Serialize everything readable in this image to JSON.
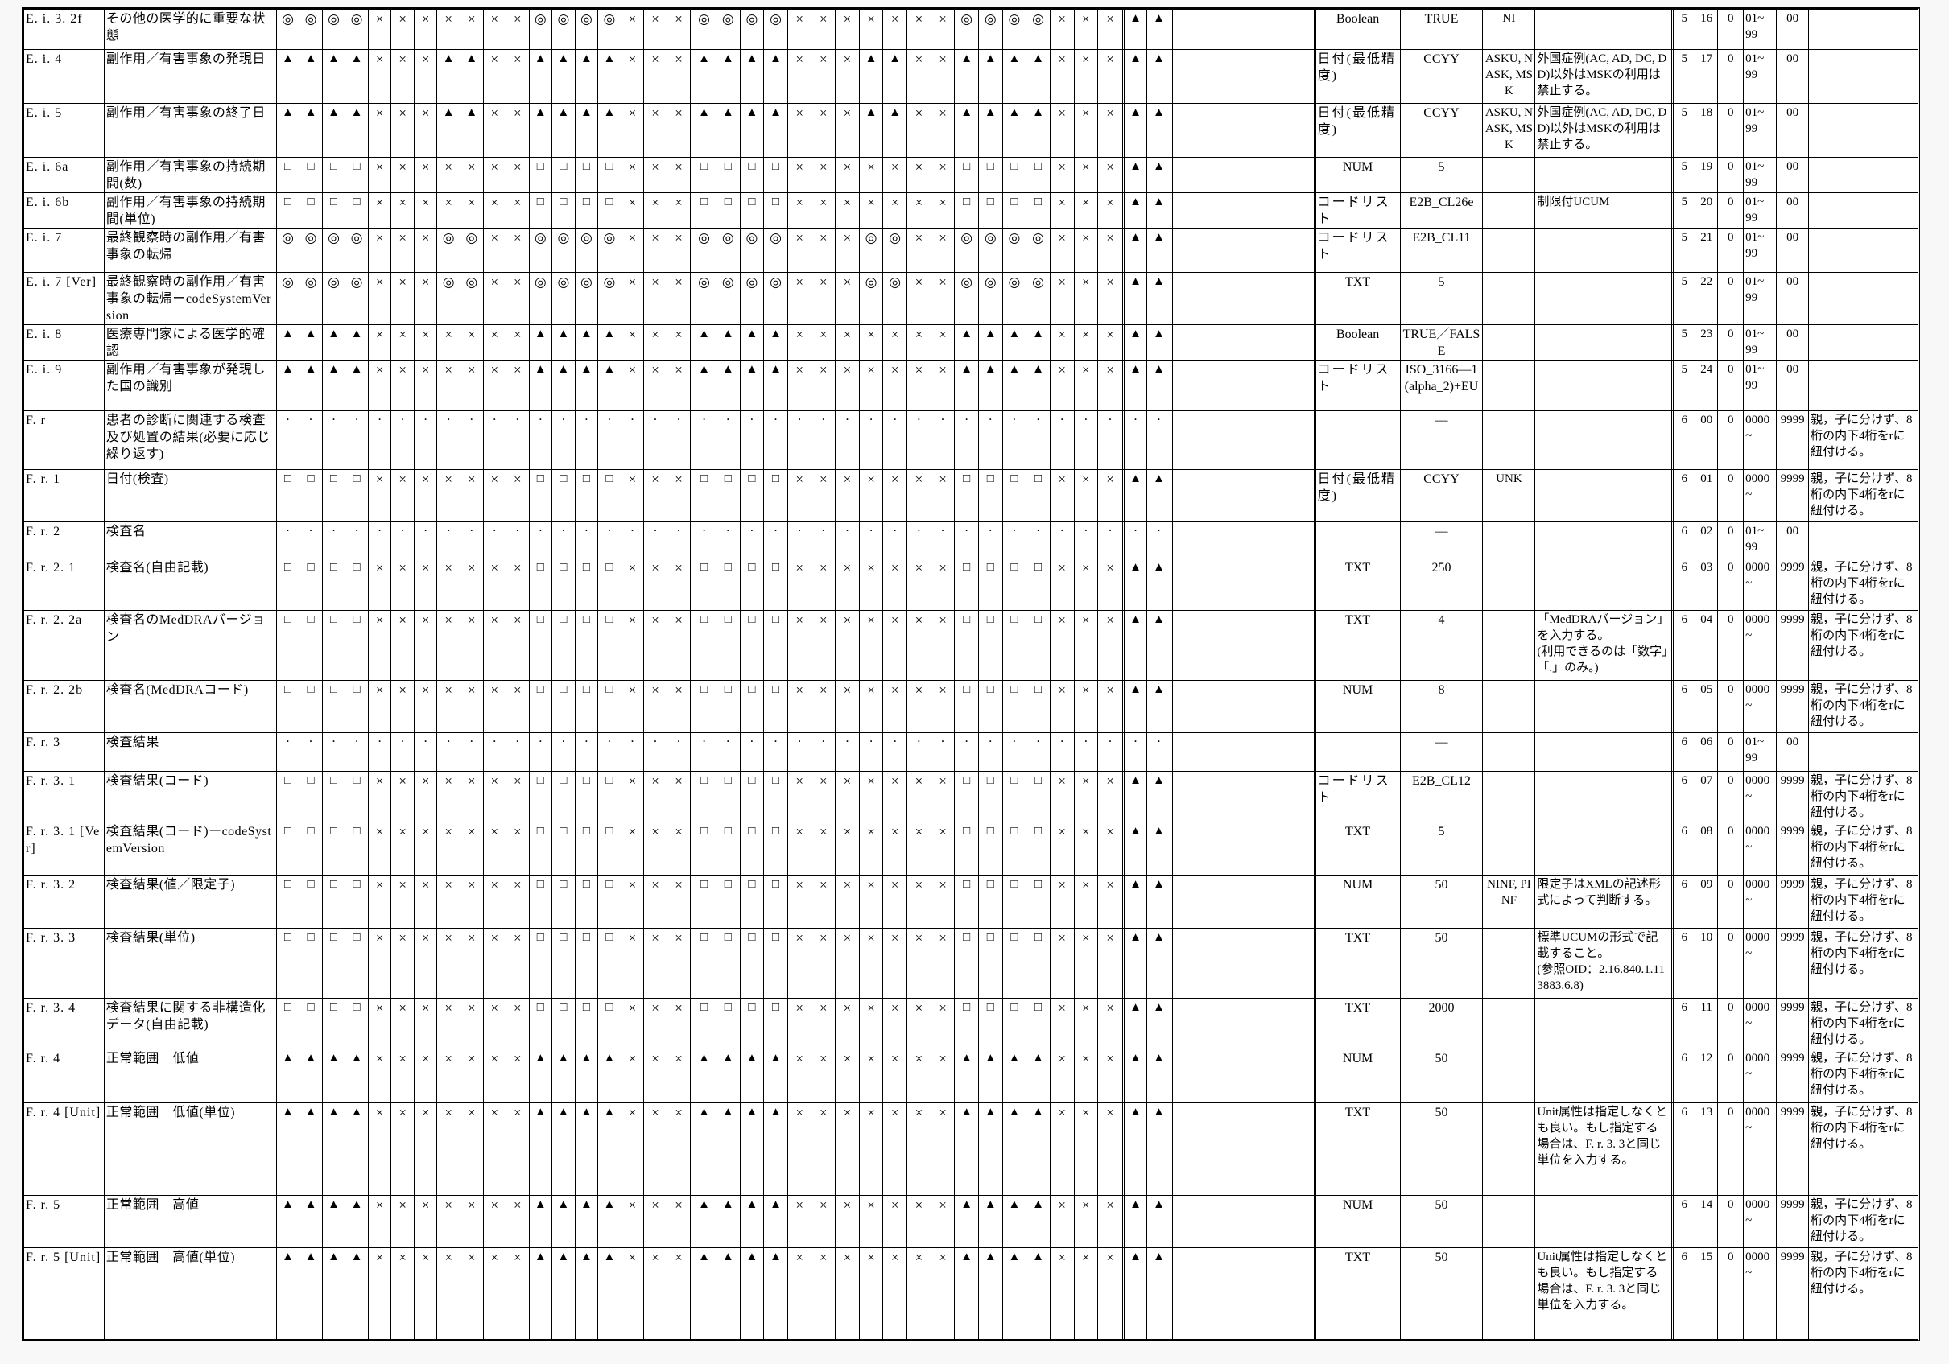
{
  "symbols_legend": {
    "double-circle-icon": "◎",
    "black-triangle-icon": "▲",
    "cross-icon": "×",
    "white-square-icon": "□",
    "dot-icon": "·"
  },
  "table": {
    "rows": [
      {
        "id": "E. i. 3. 2f",
        "desc": "その他の医学的に重要な状態",
        "half": "◎◎◎◎×××××××◎◎◎◎×××",
        "tail": "▲▲",
        "dtype": "Boolean",
        "value": "TRUE",
        "nullflavor": "NI",
        "note": "",
        "g1": "5",
        "g2": "16",
        "g3": "0",
        "g4": "01~\n99",
        "g5": "00",
        "endnote": ""
      },
      {
        "id": "E. i. 4",
        "desc": "副作用／有害事象の発現日",
        "half": "▲▲▲▲×××▲▲××▲▲▲▲×××",
        "tail": "▲▲",
        "dtype": "日付(最低精度)",
        "value": "CCYY",
        "nullflavor": "ASKU, NASK, MSK",
        "note": "外国症例(AC, AD, DC, DD)以外はMSKの利用は禁止する。",
        "g1": "5",
        "g2": "17",
        "g3": "0",
        "g4": "01~\n99",
        "g5": "00",
        "endnote": ""
      },
      {
        "id": "E. i. 5",
        "desc": "副作用／有害事象の終了日",
        "half": "▲▲▲▲×××▲▲××▲▲▲▲×××",
        "tail": "▲▲",
        "dtype": "日付(最低精度)",
        "value": "CCYY",
        "nullflavor": "ASKU, NASK, MSK",
        "note": "外国症例(AC, AD, DC, DD)以外はMSKの利用は禁止する。",
        "g1": "5",
        "g2": "18",
        "g3": "0",
        "g4": "01~\n99",
        "g5": "00",
        "endnote": ""
      },
      {
        "id": "E. i. 6a",
        "desc": "副作用／有害事象の持続期間(数)",
        "half": "□□□□×××××××□□□□×××",
        "tail": "▲▲",
        "dtype": "NUM",
        "value": "5",
        "nullflavor": "",
        "note": "",
        "g1": "5",
        "g2": "19",
        "g3": "0",
        "g4": "01~\n99",
        "g5": "00",
        "endnote": ""
      },
      {
        "id": "E. i. 6b",
        "desc": "副作用／有害事象の持続期間(単位)",
        "half": "□□□□×××××××□□□□×××",
        "tail": "▲▲",
        "dtype": "コードリスト",
        "value": "E2B_CL26e",
        "nullflavor": "",
        "note": "制限付UCUM",
        "g1": "5",
        "g2": "20",
        "g3": "0",
        "g4": "01~\n99",
        "g5": "00",
        "endnote": ""
      },
      {
        "id": "E. i. 7",
        "desc": "最終観察時の副作用／有害事象の転帰",
        "half": "◎◎◎◎×××◎◎××◎◎◎◎×××",
        "tail": "▲▲",
        "dtype": "コードリスト",
        "value": "E2B_CL11",
        "nullflavor": "",
        "note": "",
        "g1": "5",
        "g2": "21",
        "g3": "0",
        "g4": "01~\n99",
        "g5": "00",
        "endnote": ""
      },
      {
        "id": "E. i. 7 [Ver]",
        "desc": "最終観察時の副作用／有害事象の転帰ーcodeSystemVersion",
        "half": "◎◎◎◎×××◎◎××◎◎◎◎×××",
        "tail": "▲▲",
        "dtype": "TXT",
        "value": "5",
        "nullflavor": "",
        "note": "",
        "g1": "5",
        "g2": "22",
        "g3": "0",
        "g4": "01~\n99",
        "g5": "00",
        "endnote": ""
      },
      {
        "id": "E. i. 8",
        "desc": "医療専門家による医学的確認",
        "half": "▲▲▲▲×××××××▲▲▲▲×××",
        "tail": "▲▲",
        "dtype": "Boolean",
        "value": "TRUE／FALSE",
        "nullflavor": "",
        "note": "",
        "g1": "5",
        "g2": "23",
        "g3": "0",
        "g4": "01~\n99",
        "g5": "00",
        "endnote": ""
      },
      {
        "id": "E. i. 9",
        "desc": "副作用／有害事象が発現した国の識別",
        "half": "▲▲▲▲×××××××▲▲▲▲×××",
        "tail": "▲▲",
        "dtype": "コードリスト",
        "value": "ISO_3166—1(alpha_2)+EU",
        "nullflavor": "",
        "note": "",
        "g1": "5",
        "g2": "24",
        "g3": "0",
        "g4": "01~\n99",
        "g5": "00",
        "endnote": ""
      },
      {
        "id": "F. r",
        "desc": "患者の診断に関連する検査及び処置の結果(必要に応じ繰り返す)",
        "half": "··················",
        "tail": "··",
        "dtype": "",
        "value": "―",
        "nullflavor": "",
        "note": "",
        "g1": "6",
        "g2": "00",
        "g3": "0",
        "g4": "0000\n~",
        "g5": "9999",
        "endnote": "親，子に分けず、8桁の内下4桁をrに紐付ける。"
      },
      {
        "id": "F. r. 1",
        "desc": "日付(検査)",
        "half": "□□□□×××××××□□□□×××",
        "tail": "▲▲",
        "dtype": "日付(最低精度)",
        "value": "CCYY",
        "nullflavor": "UNK",
        "note": "",
        "g1": "6",
        "g2": "01",
        "g3": "0",
        "g4": "0000\n~",
        "g5": "9999",
        "endnote": "親，子に分けず、8桁の内下4桁をrに紐付ける。"
      },
      {
        "id": "F. r. 2",
        "desc": "検査名",
        "half": "··················",
        "tail": "··",
        "dtype": "",
        "value": "―",
        "nullflavor": "",
        "note": "",
        "g1": "6",
        "g2": "02",
        "g3": "0",
        "g4": "01~\n99",
        "g5": "00",
        "endnote": ""
      },
      {
        "id": "F. r. 2. 1",
        "desc": "検査名(自由記載)",
        "half": "□□□□×××××××□□□□×××",
        "tail": "▲▲",
        "dtype": "TXT",
        "value": "250",
        "nullflavor": "",
        "note": "",
        "g1": "6",
        "g2": "03",
        "g3": "0",
        "g4": "0000\n~",
        "g5": "9999",
        "endnote": "親，子に分けず、8桁の内下4桁をrに紐付ける。"
      },
      {
        "id": "F. r. 2. 2a",
        "desc": "検査名のMedDRAバージョン",
        "half": "□□□□×××××××□□□□×××",
        "tail": "▲▲",
        "dtype": "TXT",
        "value": "4",
        "nullflavor": "",
        "note": "「MedDRAバージョン」を入力する。\n(利用できるのは「数字」「.」のみ。)",
        "g1": "6",
        "g2": "04",
        "g3": "0",
        "g4": "0000\n~",
        "g5": "9999",
        "endnote": "親，子に分けず、8桁の内下4桁をrに紐付ける。"
      },
      {
        "id": "F. r. 2. 2b",
        "desc": "検査名(MedDRAコード)",
        "half": "□□□□×××××××□□□□×××",
        "tail": "▲▲",
        "dtype": "NUM",
        "value": "8",
        "nullflavor": "",
        "note": "",
        "g1": "6",
        "g2": "05",
        "g3": "0",
        "g4": "0000\n~",
        "g5": "9999",
        "endnote": "親，子に分けず、8桁の内下4桁をrに紐付ける。"
      },
      {
        "id": "F. r. 3",
        "desc": "検査結果",
        "half": "··················",
        "tail": "··",
        "dtype": "",
        "value": "―",
        "nullflavor": "",
        "note": "",
        "g1": "6",
        "g2": "06",
        "g3": "0",
        "g4": "01~\n99",
        "g5": "00",
        "endnote": ""
      },
      {
        "id": "F. r. 3. 1",
        "desc": "検査結果(コード)",
        "half": "□□□□×××××××□□□□×××",
        "tail": "▲▲",
        "dtype": "コードリスト",
        "value": "E2B_CL12",
        "nullflavor": "",
        "note": "",
        "g1": "6",
        "g2": "07",
        "g3": "0",
        "g4": "0000\n~",
        "g5": "9999",
        "endnote": "親，子に分けず、8桁の内下4桁をrに紐付ける。"
      },
      {
        "id": "F. r. 3. 1 [Ver]",
        "desc": "検査結果(コード)ーcodeSystemVersion",
        "half": "□□□□×××××××□□□□×××",
        "tail": "▲▲",
        "dtype": "TXT",
        "value": "5",
        "nullflavor": "",
        "note": "",
        "g1": "6",
        "g2": "08",
        "g3": "0",
        "g4": "0000\n~",
        "g5": "9999",
        "endnote": "親，子に分けず、8桁の内下4桁をrに紐付ける。"
      },
      {
        "id": "F. r. 3. 2",
        "desc": "検査結果(値／限定子)",
        "half": "□□□□×××××××□□□□×××",
        "tail": "▲▲",
        "dtype": "NUM",
        "value": "50",
        "nullflavor": "NINF, PINF",
        "note": "限定子はXMLの記述形式によって判断する。",
        "g1": "6",
        "g2": "09",
        "g3": "0",
        "g4": "0000\n~",
        "g5": "9999",
        "endnote": "親，子に分けず、8桁の内下4桁をrに紐付ける。"
      },
      {
        "id": "F. r. 3. 3",
        "desc": "検査結果(単位)",
        "half": "□□□□×××××××□□□□×××",
        "tail": "▲▲",
        "dtype": "TXT",
        "value": "50",
        "nullflavor": "",
        "note": "標準UCUMの形式で記載すること。\n(参照OID：2.16.840.1.113883.6.8)",
        "g1": "6",
        "g2": "10",
        "g3": "0",
        "g4": "0000\n~",
        "g5": "9999",
        "endnote": "親，子に分けず、8桁の内下4桁をrに紐付ける。"
      },
      {
        "id": "F. r. 3. 4",
        "desc": "検査結果に関する非構造化データ(自由記載)",
        "half": "□□□□×××××××□□□□×××",
        "tail": "▲▲",
        "dtype": "TXT",
        "value": "2000",
        "nullflavor": "",
        "note": "",
        "g1": "6",
        "g2": "11",
        "g3": "0",
        "g4": "0000\n~",
        "g5": "9999",
        "endnote": "親，子に分けず、8桁の内下4桁をrに紐付ける。"
      },
      {
        "id": "F. r. 4",
        "desc": "正常範囲　低値",
        "half": "▲▲▲▲×××××××▲▲▲▲×××",
        "tail": "▲▲",
        "dtype": "NUM",
        "value": "50",
        "nullflavor": "",
        "note": "",
        "g1": "6",
        "g2": "12",
        "g3": "0",
        "g4": "0000\n~",
        "g5": "9999",
        "endnote": "親，子に分けず、8桁の内下4桁をrに紐付ける。"
      },
      {
        "id": "F. r. 4 [Unit]",
        "desc": "正常範囲　低値(単位)",
        "half": "▲▲▲▲×××××××▲▲▲▲×××",
        "tail": "▲▲",
        "dtype": "TXT",
        "value": "50",
        "nullflavor": "",
        "note": "Unit属性は指定しなくとも良い。もし指定する場合は、F. r. 3. 3と同じ単位を入力する。",
        "g1": "6",
        "g2": "13",
        "g3": "0",
        "g4": "0000\n~",
        "g5": "9999",
        "endnote": "親，子に分けず、8桁の内下4桁をrに紐付ける。"
      },
      {
        "id": "F. r. 5",
        "desc": "正常範囲　高値",
        "half": "▲▲▲▲×××××××▲▲▲▲×××",
        "tail": "▲▲",
        "dtype": "NUM",
        "value": "50",
        "nullflavor": "",
        "note": "",
        "g1": "6",
        "g2": "14",
        "g3": "0",
        "g4": "0000\n~",
        "g5": "9999",
        "endnote": "親，子に分けず、8桁の内下4桁をrに紐付ける。"
      },
      {
        "id": "F. r. 5 [Unit]",
        "desc": "正常範囲　高値(単位)",
        "half": "▲▲▲▲×××××××▲▲▲▲×××",
        "tail": "▲▲",
        "dtype": "TXT",
        "value": "50",
        "nullflavor": "",
        "note": "Unit属性は指定しなくとも良い。もし指定する場合は、F. r. 3. 3と同じ単位を入力する。",
        "g1": "6",
        "g2": "15",
        "g3": "0",
        "g4": "0000\n~",
        "g5": "9999",
        "endnote": "親，子に分けず、8桁の内下4桁をrに紐付ける。"
      }
    ]
  }
}
